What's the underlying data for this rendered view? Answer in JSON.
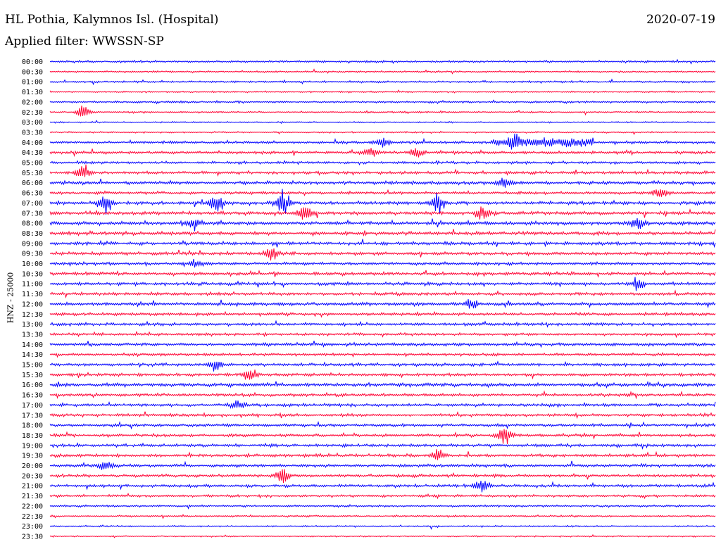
{
  "header": {
    "station": "HL Pothia, Kalymnos Isl. (Hospital)",
    "date": "2020-07-19",
    "filter": "Applied filter: WWSSN-SP"
  },
  "colors": {
    "trace_a": "#0000ff",
    "trace_b": "#ff0033",
    "text": "#000000"
  },
  "chart_data": {
    "type": "line",
    "title": "HL Pothia, Kalymnos Isl. (Hospital)",
    "subtitle": "Applied filter: WWSSN-SP",
    "ylabel": "HNZ - 25000",
    "rows": [
      "00:00",
      "00:30",
      "01:00",
      "01:30",
      "02:00",
      "02:30",
      "03:00",
      "03:30",
      "04:00",
      "04:30",
      "05:00",
      "05:30",
      "06:00",
      "06:30",
      "07:00",
      "07:30",
      "08:00",
      "08:30",
      "09:00",
      "09:30",
      "10:00",
      "10:30",
      "11:00",
      "11:30",
      "12:00",
      "12:30",
      "13:00",
      "13:30",
      "14:00",
      "14:30",
      "15:00",
      "15:30",
      "16:00",
      "16:30",
      "17:00",
      "17:30",
      "18:00",
      "18:30",
      "19:00",
      "19:30",
      "20:00",
      "20:30",
      "21:00",
      "21:30",
      "22:00",
      "22:30",
      "23:00",
      "23:30"
    ],
    "row_noise": [
      0.9,
      0.8,
      0.9,
      0.7,
      0.9,
      0.7,
      0.6,
      0.7,
      1.2,
      1.3,
      1.2,
      1.3,
      1.5,
      1.3,
      1.6,
      1.6,
      1.6,
      1.6,
      1.5,
      1.5,
      1.4,
      1.5,
      1.5,
      1.4,
      1.5,
      1.3,
      1.4,
      1.2,
      1.4,
      1.3,
      1.4,
      1.4,
      1.6,
      1.3,
      1.4,
      1.3,
      1.3,
      1.3,
      1.4,
      1.4,
      1.4,
      1.3,
      1.3,
      1.1,
      0.9,
      0.8,
      0.7,
      0.6
    ],
    "events": [
      {
        "row": "02:30",
        "minute": 1.5,
        "amplitude": 9
      },
      {
        "row": "04:00",
        "minute": 15,
        "amplitude": 6
      },
      {
        "row": "04:00",
        "minute": 21,
        "amplitude": 5.5
      },
      {
        "row": "04:30",
        "minute": 14.5,
        "amplitude": 7
      },
      {
        "row": "04:30",
        "minute": 16.5,
        "amplitude": 7
      },
      {
        "row": "05:30",
        "minute": 1.5,
        "amplitude": 10
      },
      {
        "row": "06:00",
        "minute": 20.5,
        "amplitude": 7
      },
      {
        "row": "06:30",
        "minute": 27.5,
        "amplitude": 7
      },
      {
        "row": "07:00",
        "minute": 2.5,
        "amplitude": 12
      },
      {
        "row": "07:00",
        "minute": 7.5,
        "amplitude": 10
      },
      {
        "row": "07:00",
        "minute": 10.5,
        "amplitude": 12
      },
      {
        "row": "07:00",
        "minute": 17.5,
        "amplitude": 10
      },
      {
        "row": "07:30",
        "minute": 11.5,
        "amplitude": 12
      },
      {
        "row": "07:30",
        "minute": 19.5,
        "amplitude": 8
      },
      {
        "row": "08:00",
        "minute": 6.5,
        "amplitude": 6
      },
      {
        "row": "08:00",
        "minute": 26.5,
        "amplitude": 8
      },
      {
        "row": "09:30",
        "minute": 10,
        "amplitude": 8
      },
      {
        "row": "10:00",
        "minute": 6.5,
        "amplitude": 5
      },
      {
        "row": "11:00",
        "minute": 26.5,
        "amplitude": 6
      },
      {
        "row": "12:00",
        "minute": 19,
        "amplitude": 5
      },
      {
        "row": "15:00",
        "minute": 7.5,
        "amplitude": 5
      },
      {
        "row": "15:30",
        "minute": 9,
        "amplitude": 7
      },
      {
        "row": "17:00",
        "minute": 8.5,
        "amplitude": 5
      },
      {
        "row": "18:30",
        "minute": 20.5,
        "amplitude": 12
      },
      {
        "row": "19:30",
        "minute": 17.5,
        "amplitude": 7
      },
      {
        "row": "20:00",
        "minute": 2.5,
        "amplitude": 6
      },
      {
        "row": "20:30",
        "minute": 10.5,
        "amplitude": 10
      },
      {
        "row": "21:00",
        "minute": 19.5,
        "amplitude": 9
      }
    ],
    "tremor_bands": [
      {
        "row": "04:00",
        "start_minute": 20,
        "end_minute": 24.5,
        "amplitude": 5
      }
    ],
    "legend": "none",
    "grid": false
  }
}
